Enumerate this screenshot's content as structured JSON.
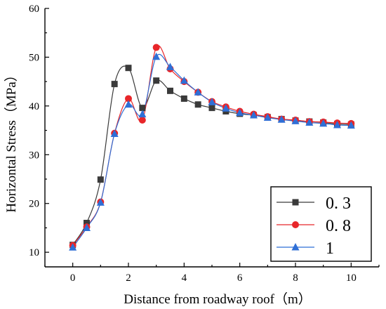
{
  "chart_data": {
    "type": "line",
    "title": "",
    "xlabel": "Distance from roadway roof（m）",
    "ylabel": "Horizontal Stress（MPa）",
    "xlim": [
      -1,
      11
    ],
    "ylim": [
      7,
      60
    ],
    "xticks": [
      0,
      2,
      4,
      6,
      8,
      10
    ],
    "yticks": [
      10,
      20,
      30,
      40,
      50,
      60
    ],
    "xtick_labels": [
      "0",
      "2",
      "4",
      "6",
      "8",
      "10"
    ],
    "ytick_labels": [
      "10",
      "20",
      "30",
      "40",
      "50",
      "60"
    ],
    "grid": false,
    "legend_position": "bottom-right",
    "series": [
      {
        "name": "0. 3",
        "color": "#3a3a3a",
        "marker": "square",
        "x": [
          0,
          0.5,
          1,
          1.5,
          2,
          2.5,
          3,
          3.5,
          4,
          4.5,
          5,
          5.5,
          6,
          6.5,
          7,
          7.5,
          8,
          8.5,
          9,
          9.5,
          10
        ],
        "y": [
          11.5,
          16,
          24.9,
          44.5,
          47.8,
          39.6,
          45.2,
          43.1,
          41.5,
          40.3,
          39.6,
          38.9,
          38.4,
          38.1,
          37.7,
          37.3,
          37,
          36.8,
          36.6,
          36.3,
          36.2
        ]
      },
      {
        "name": "0. 8",
        "color": "#e8262a",
        "marker": "circle",
        "x": [
          0,
          0.5,
          1,
          1.5,
          2,
          2.5,
          3,
          3.5,
          4,
          4.5,
          5,
          5.5,
          6,
          6.5,
          7,
          7.5,
          8,
          8.5,
          9,
          9.5,
          10
        ],
        "y": [
          11.4,
          15.2,
          20.3,
          34.4,
          41.5,
          37.1,
          52,
          47.6,
          45,
          42.8,
          40.9,
          39.8,
          38.9,
          38.3,
          37.8,
          37.3,
          37.1,
          36.8,
          36.7,
          36.5,
          36.4
        ]
      },
      {
        "name": "1",
        "color": "#2f6fd6",
        "marker": "triangle",
        "x": [
          0,
          0.5,
          1,
          1.5,
          2,
          2.5,
          3,
          3.5,
          4,
          4.5,
          5,
          5.5,
          6,
          6.5,
          7,
          7.5,
          8,
          8.5,
          9,
          9.5,
          10
        ],
        "y": [
          11,
          15,
          20.2,
          34.3,
          40.3,
          38.3,
          50.1,
          48,
          45.2,
          42.8,
          40.8,
          39.5,
          38.6,
          38.1,
          37.6,
          37.2,
          36.9,
          36.6,
          36.4,
          36.1,
          36
        ]
      }
    ]
  }
}
